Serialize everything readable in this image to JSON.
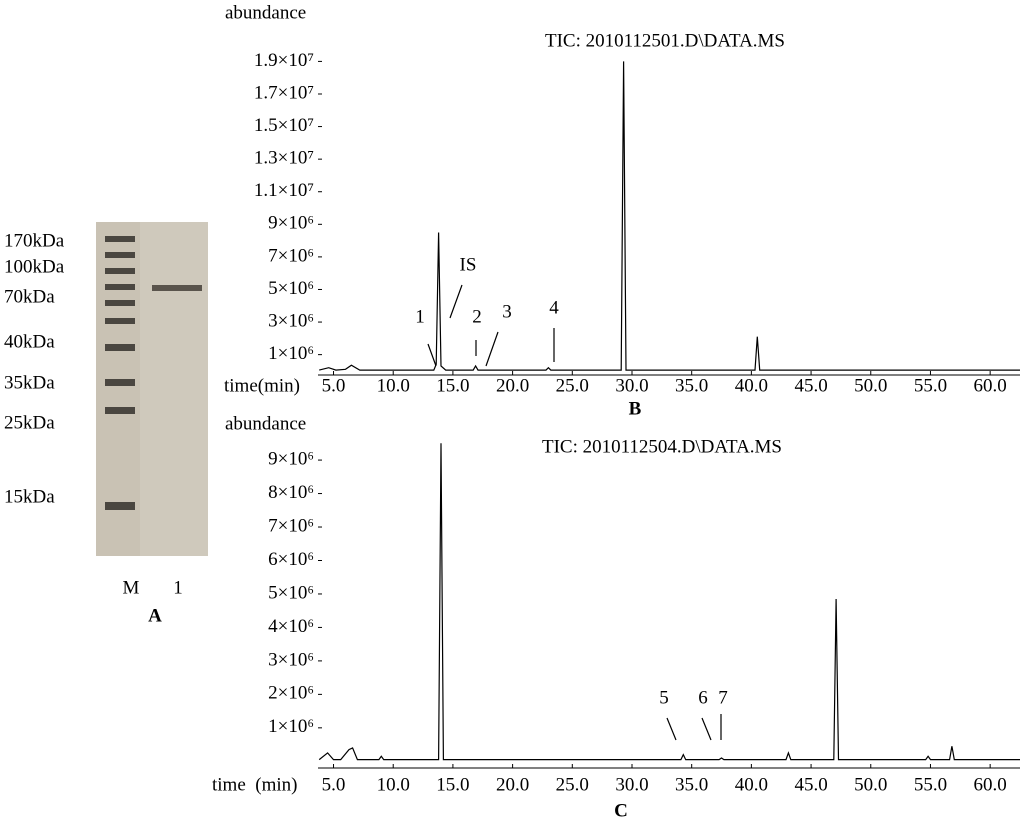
{
  "gel": {
    "marker_labels": [
      "170kDa",
      "100kDa",
      "70kDa",
      "40kDa",
      "35kDa",
      "25kDa",
      "15kDa"
    ],
    "lane_labels": [
      "M",
      "1"
    ],
    "panel": "A"
  },
  "chart_data": [
    {
      "type": "line",
      "panel": "B",
      "title": "TIC: 2010112501.D\\DATA.MS",
      "y_label": "abundance",
      "x_label": "time(min)",
      "color": "#000000",
      "x": [
        3.8,
        4.6,
        5.2,
        6.0,
        6.5,
        7.2,
        13.4,
        13.6,
        13.8,
        14.0,
        14.4,
        16.7,
        16.9,
        17.1,
        22.8,
        23.0,
        23.2,
        29.1,
        29.3,
        29.5,
        40.3,
        40.5,
        40.7,
        62.5
      ],
      "values": [
        50000,
        200000,
        50000,
        100000,
        350000,
        50000,
        50000,
        400000,
        8500000,
        300000,
        50000,
        50000,
        300000,
        50000,
        50000,
        200000,
        50000,
        50000,
        19000000,
        50000,
        50000,
        2100000,
        50000,
        50000
      ],
      "xlim": [
        3.7,
        62.5
      ],
      "ylim": [
        -250000,
        19700000
      ],
      "xticks": [
        {
          "value": 5,
          "label": "5.0"
        },
        {
          "value": 10,
          "label": "10.0"
        },
        {
          "value": 15,
          "label": "15.0"
        },
        {
          "value": 20,
          "label": "20.0"
        },
        {
          "value": 25,
          "label": "25.0"
        },
        {
          "value": 30,
          "label": "30.0"
        },
        {
          "value": 35,
          "label": "35.0"
        },
        {
          "value": 40,
          "label": "40.0"
        },
        {
          "value": 45,
          "label": "45.0"
        },
        {
          "value": 50,
          "label": "50.0"
        },
        {
          "value": 55,
          "label": "55.0"
        },
        {
          "value": 60,
          "label": "60.0"
        }
      ],
      "yticks": [
        {
          "value": 1000000,
          "label": "1×10⁶"
        },
        {
          "value": 3000000,
          "label": "3×10⁶"
        },
        {
          "value": 5000000,
          "label": "5×10⁶"
        },
        {
          "value": 7000000,
          "label": "7×10⁶"
        },
        {
          "value": 9000000,
          "label": "9×10⁶"
        },
        {
          "value": 11000000,
          "label": "1.1×10⁷"
        },
        {
          "value": 13000000,
          "label": "1.3×10⁷"
        },
        {
          "value": 15000000,
          "label": "1.5×10⁷"
        },
        {
          "value": 17000000,
          "label": "1.7×10⁷"
        },
        {
          "value": 19000000,
          "label": "1.9×10⁷"
        }
      ],
      "annotations": [
        {
          "text": "1"
        },
        {
          "text": "IS"
        },
        {
          "text": "2"
        },
        {
          "text": "3"
        },
        {
          "text": "4"
        }
      ]
    },
    {
      "type": "line",
      "panel": "C",
      "title": "TIC: 2010112504.D\\DATA.MS",
      "y_label": "abundance",
      "x_label": "time  (min)",
      "color": "#000000",
      "x": [
        3.8,
        4.5,
        5.0,
        5.6,
        6.3,
        6.6,
        7.0,
        8.8,
        9.0,
        9.2,
        13.8,
        14.0,
        14.2,
        34.1,
        34.3,
        34.5,
        37.3,
        37.5,
        37.7,
        42.9,
        43.1,
        43.3,
        46.9,
        47.1,
        47.3,
        54.6,
        54.8,
        55.0,
        56.6,
        56.8,
        57.0,
        62.5
      ],
      "values": [
        50000,
        250000,
        50000,
        50000,
        350000,
        400000,
        50000,
        50000,
        150000,
        50000,
        50000,
        9500000,
        50000,
        50000,
        200000,
        50000,
        50000,
        100000,
        50000,
        50000,
        250000,
        50000,
        50000,
        4850000,
        50000,
        50000,
        150000,
        50000,
        50000,
        450000,
        50000,
        50000
      ],
      "xlim": [
        3.7,
        62.5
      ],
      "ylim": [
        -200000,
        9600000
      ],
      "xticks": [
        {
          "value": 5,
          "label": "5.0"
        },
        {
          "value": 10,
          "label": "10.0"
        },
        {
          "value": 15,
          "label": "15.0"
        },
        {
          "value": 20,
          "label": "20.0"
        },
        {
          "value": 25,
          "label": "25.0"
        },
        {
          "value": 30,
          "label": "30.0"
        },
        {
          "value": 35,
          "label": "35.0"
        },
        {
          "value": 40,
          "label": "40.0"
        },
        {
          "value": 45,
          "label": "45.0"
        },
        {
          "value": 50,
          "label": "50.0"
        },
        {
          "value": 55,
          "label": "55.0"
        },
        {
          "value": 60,
          "label": "60.0"
        }
      ],
      "yticks": [
        {
          "value": 1000000,
          "label": "1×10⁶"
        },
        {
          "value": 2000000,
          "label": "2×10⁶"
        },
        {
          "value": 3000000,
          "label": "3×10⁶"
        },
        {
          "value": 4000000,
          "label": "4×10⁶"
        },
        {
          "value": 5000000,
          "label": "5×10⁶"
        },
        {
          "value": 6000000,
          "label": "6×10⁶"
        },
        {
          "value": 7000000,
          "label": "7×10⁶"
        },
        {
          "value": 8000000,
          "label": "8×10⁶"
        },
        {
          "value": 9000000,
          "label": "9×10⁶"
        }
      ],
      "annotations": [
        {
          "text": "5"
        },
        {
          "text": "6"
        },
        {
          "text": "7"
        }
      ]
    }
  ]
}
